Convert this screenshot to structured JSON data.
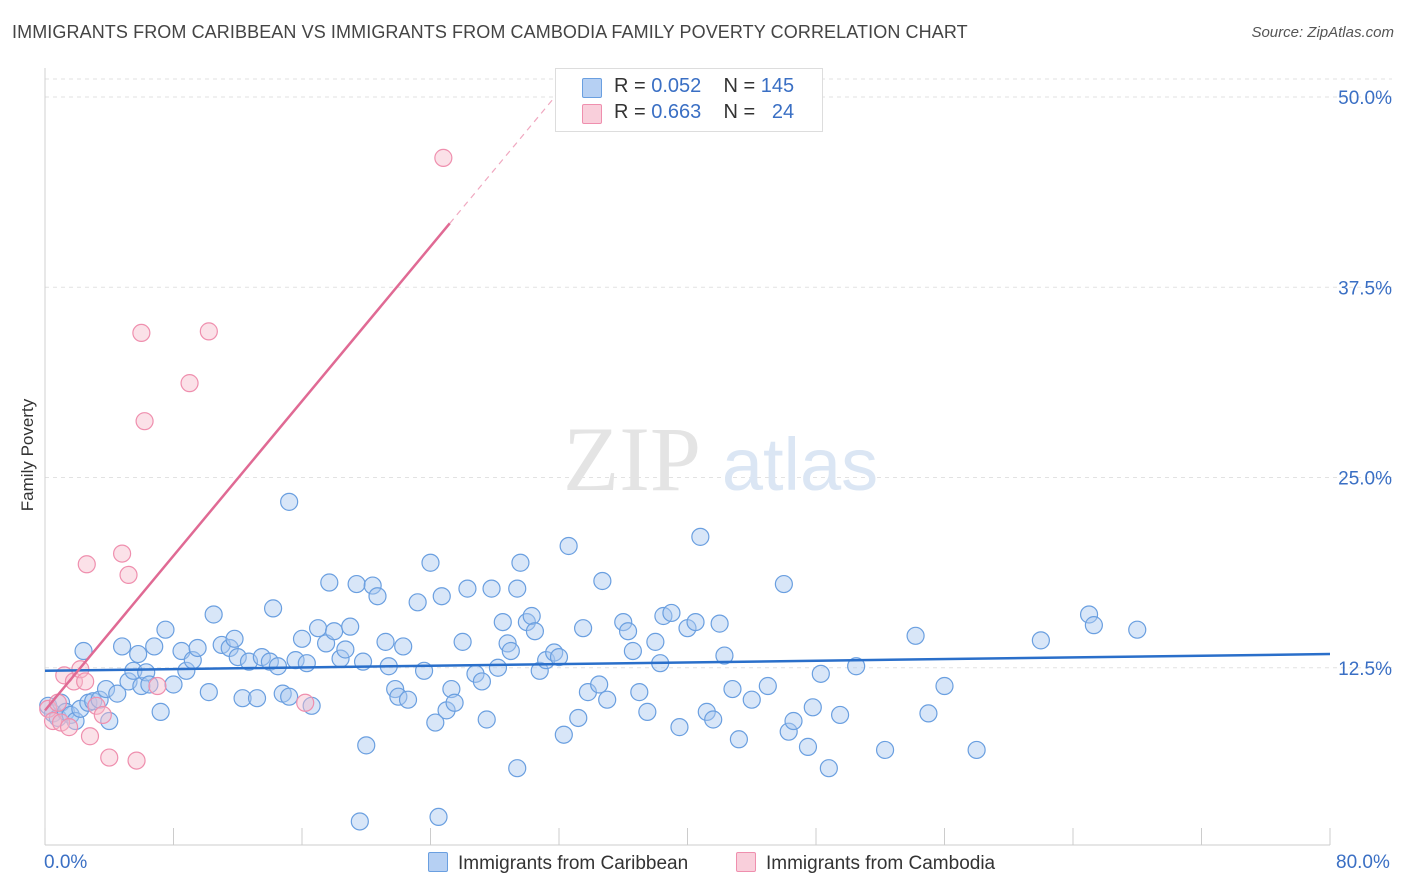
{
  "title": "IMMIGRANTS FROM CARIBBEAN VS IMMIGRANTS FROM CAMBODIA FAMILY POVERTY CORRELATION CHART",
  "source": "Source: ZipAtlas.com",
  "watermark": {
    "zip": "ZIP",
    "atlas": "atlas"
  },
  "legend": {
    "caribbean": {
      "r_label": "R =",
      "r_value": "0.052",
      "n_label": "N =",
      "n_value": "145"
    },
    "cambodia": {
      "r_label": "R =",
      "r_value": "0.663",
      "n_label": "N =",
      "n_value": "24"
    }
  },
  "colors": {
    "caribbean_fill": "#a9c8f0",
    "caribbean_stroke": "#6a9fe0",
    "caribbean_line": "#2a6fca",
    "cambodia_fill": "#f6bccd",
    "cambodia_stroke": "#ef8fae",
    "cambodia_line": "#e06a94",
    "tick_label": "#3a6fc4",
    "grid": "#e2e2e2"
  },
  "chart_data": {
    "type": "scatter",
    "title": "IMMIGRANTS FROM CARIBBEAN VS IMMIGRANTS FROM CAMBODIA FAMILY POVERTY CORRELATION CHART",
    "xlabel": "",
    "ylabel": "Family Poverty",
    "xlim": [
      0,
      80
    ],
    "ylim": [
      0,
      50
    ],
    "x_tick_labels": [
      "0.0%",
      "80.0%"
    ],
    "y_ticks": [
      12.5,
      25.0,
      37.5,
      50.0
    ],
    "y_tick_labels": [
      "12.5%",
      "25.0%",
      "37.5%",
      "50.0%"
    ],
    "grid": true,
    "legend_position": "top-center",
    "series": [
      {
        "name": "Immigrants from Caribbean",
        "trend": {
          "x0": 0,
          "y0": 12.3,
          "x1": 80,
          "y1": 13.4
        },
        "points": [
          [
            0.2,
            10.0
          ],
          [
            0.5,
            9.5
          ],
          [
            0.8,
            9.2
          ],
          [
            1.0,
            10.2
          ],
          [
            1.3,
            9.6
          ],
          [
            1.6,
            9.4
          ],
          [
            1.9,
            9.0
          ],
          [
            2.2,
            9.8
          ],
          [
            2.4,
            13.6
          ],
          [
            2.7,
            10.2
          ],
          [
            3.0,
            10.3
          ],
          [
            3.4,
            10.4
          ],
          [
            3.8,
            11.1
          ],
          [
            4.0,
            9.0
          ],
          [
            4.5,
            10.8
          ],
          [
            4.8,
            13.9
          ],
          [
            5.2,
            11.6
          ],
          [
            5.5,
            12.3
          ],
          [
            5.8,
            13.4
          ],
          [
            6.0,
            11.3
          ],
          [
            6.3,
            12.2
          ],
          [
            6.5,
            11.4
          ],
          [
            6.8,
            13.9
          ],
          [
            7.2,
            9.6
          ],
          [
            7.5,
            15.0
          ],
          [
            8.0,
            11.4
          ],
          [
            8.5,
            13.6
          ],
          [
            8.8,
            12.3
          ],
          [
            9.2,
            13.0
          ],
          [
            9.5,
            13.8
          ],
          [
            10.2,
            10.9
          ],
          [
            10.5,
            16.0
          ],
          [
            11.0,
            14.0
          ],
          [
            11.5,
            13.8
          ],
          [
            11.8,
            14.4
          ],
          [
            12.0,
            13.2
          ],
          [
            12.3,
            10.5
          ],
          [
            12.7,
            12.9
          ],
          [
            13.2,
            10.5
          ],
          [
            13.5,
            13.2
          ],
          [
            14.0,
            12.9
          ],
          [
            14.2,
            16.4
          ],
          [
            14.5,
            12.6
          ],
          [
            14.8,
            10.8
          ],
          [
            15.2,
            10.6
          ],
          [
            15.6,
            13.0
          ],
          [
            16.0,
            14.4
          ],
          [
            16.3,
            12.8
          ],
          [
            16.6,
            10.0
          ],
          [
            17.0,
            15.1
          ],
          [
            17.5,
            14.1
          ],
          [
            17.7,
            18.1
          ],
          [
            18.0,
            14.9
          ],
          [
            18.4,
            13.1
          ],
          [
            18.7,
            13.7
          ],
          [
            19.0,
            15.2
          ],
          [
            19.4,
            18.0
          ],
          [
            19.8,
            12.9
          ],
          [
            20.0,
            7.4
          ],
          [
            20.4,
            17.9
          ],
          [
            20.7,
            17.2
          ],
          [
            21.2,
            14.2
          ],
          [
            21.4,
            12.6
          ],
          [
            21.8,
            11.1
          ],
          [
            22.0,
            10.6
          ],
          [
            22.3,
            13.9
          ],
          [
            22.6,
            10.4
          ],
          [
            23.2,
            16.8
          ],
          [
            23.6,
            12.3
          ],
          [
            24.0,
            19.4
          ],
          [
            24.3,
            8.9
          ],
          [
            24.7,
            17.2
          ],
          [
            25.0,
            9.7
          ],
          [
            25.3,
            11.1
          ],
          [
            25.5,
            10.2
          ],
          [
            26.0,
            14.2
          ],
          [
            26.3,
            17.7
          ],
          [
            26.8,
            12.1
          ],
          [
            27.2,
            11.6
          ],
          [
            27.5,
            9.1
          ],
          [
            27.8,
            17.7
          ],
          [
            28.2,
            12.5
          ],
          [
            28.5,
            15.5
          ],
          [
            28.8,
            14.1
          ],
          [
            29.0,
            13.6
          ],
          [
            29.4,
            17.7
          ],
          [
            29.6,
            19.4
          ],
          [
            30.0,
            15.5
          ],
          [
            30.3,
            15.9
          ],
          [
            30.5,
            14.9
          ],
          [
            30.8,
            12.3
          ],
          [
            31.2,
            13.0
          ],
          [
            31.7,
            13.5
          ],
          [
            32.0,
            13.2
          ],
          [
            32.3,
            8.1
          ],
          [
            32.6,
            20.5
          ],
          [
            33.2,
            9.2
          ],
          [
            33.5,
            15.1
          ],
          [
            33.8,
            10.9
          ],
          [
            34.5,
            11.4
          ],
          [
            34.7,
            18.2
          ],
          [
            35.0,
            10.4
          ],
          [
            36.0,
            15.5
          ],
          [
            36.3,
            14.9
          ],
          [
            36.6,
            13.6
          ],
          [
            37.0,
            10.9
          ],
          [
            37.5,
            9.6
          ],
          [
            38.0,
            14.2
          ],
          [
            38.3,
            12.8
          ],
          [
            38.5,
            15.9
          ],
          [
            39.0,
            16.1
          ],
          [
            39.5,
            8.6
          ],
          [
            40.0,
            15.1
          ],
          [
            40.5,
            15.5
          ],
          [
            40.8,
            21.1
          ],
          [
            41.2,
            9.6
          ],
          [
            41.6,
            9.1
          ],
          [
            42.0,
            15.4
          ],
          [
            42.3,
            13.3
          ],
          [
            42.8,
            11.1
          ],
          [
            43.2,
            7.8
          ],
          [
            44.0,
            10.4
          ],
          [
            45.0,
            11.3
          ],
          [
            46.0,
            18.0
          ],
          [
            46.3,
            8.3
          ],
          [
            46.6,
            9.0
          ],
          [
            47.5,
            7.3
          ],
          [
            47.8,
            9.9
          ],
          [
            48.3,
            12.1
          ],
          [
            48.8,
            5.9
          ],
          [
            49.5,
            9.4
          ],
          [
            50.5,
            12.6
          ],
          [
            52.3,
            7.1
          ],
          [
            54.2,
            14.6
          ],
          [
            55.0,
            9.5
          ],
          [
            56.0,
            11.3
          ],
          [
            58.0,
            7.1
          ],
          [
            62.0,
            14.3
          ],
          [
            65.0,
            16.0
          ],
          [
            65.3,
            15.3
          ],
          [
            68.0,
            15.0
          ],
          [
            19.6,
            2.4
          ],
          [
            24.5,
            2.7
          ],
          [
            29.4,
            5.9
          ],
          [
            15.2,
            23.4
          ]
        ]
      },
      {
        "name": "Immigrants from Cambodia",
        "trend": {
          "x0": 0,
          "y0": 9.7,
          "x1": 25.2,
          "y1": 41.7,
          "dashed_to_x": 32.0
        },
        "points": [
          [
            0.2,
            9.8
          ],
          [
            0.5,
            9.0
          ],
          [
            0.8,
            10.2
          ],
          [
            1.0,
            8.9
          ],
          [
            1.2,
            12.0
          ],
          [
            1.5,
            8.6
          ],
          [
            1.8,
            11.6
          ],
          [
            2.2,
            12.4
          ],
          [
            2.5,
            11.6
          ],
          [
            2.8,
            8.0
          ],
          [
            3.2,
            10.0
          ],
          [
            3.6,
            9.4
          ],
          [
            4.0,
            6.6
          ],
          [
            4.8,
            20.0
          ],
          [
            5.2,
            18.6
          ],
          [
            5.7,
            6.4
          ],
          [
            6.2,
            28.7
          ],
          [
            7.0,
            11.3
          ],
          [
            2.6,
            19.3
          ],
          [
            6.0,
            34.5
          ],
          [
            10.2,
            34.6
          ],
          [
            9.0,
            31.2
          ],
          [
            16.2,
            10.2
          ],
          [
            24.8,
            46.0
          ]
        ]
      }
    ]
  },
  "bottom_legend": {
    "caribbean": "Immigrants from Caribbean",
    "cambodia": "Immigrants from Cambodia"
  }
}
